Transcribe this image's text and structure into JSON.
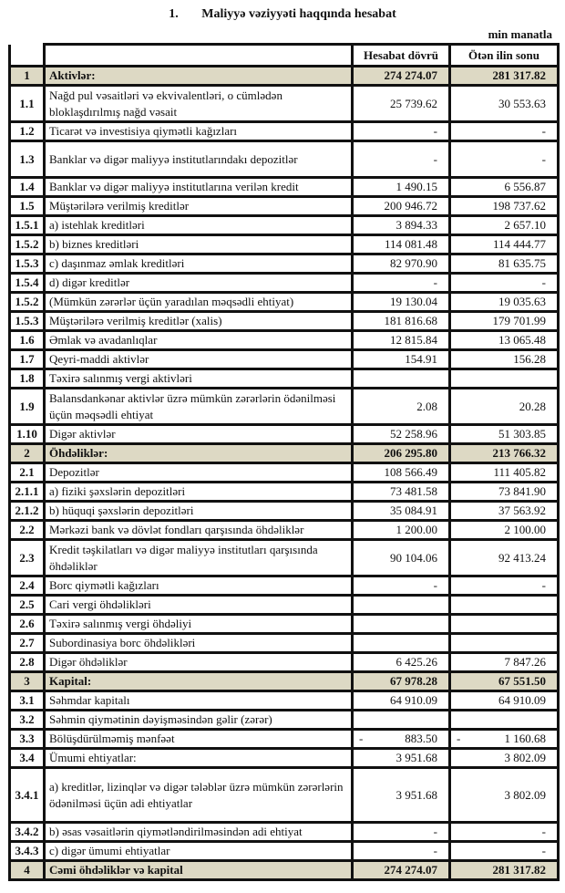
{
  "title": {
    "number": "1.",
    "text": "Maliyyə vəziyyəti haqqında hesabat"
  },
  "unit": "min manatla",
  "columns": {
    "num": "",
    "desc": "",
    "current": "Hesabat dövrü",
    "previous": "Ötən ilin sonu"
  },
  "rows": [
    {
      "num": "1",
      "desc": "Aktivlər:",
      "current": "274 274.07",
      "previous": "281 317.82",
      "section": true
    },
    {
      "num": "1.1",
      "desc": "Nağd pul vəsaitləri və  ekvivalentləri, o cümlədən bloklaşdırılmış nağd vəsait",
      "current": "25 739.62",
      "previous": "30 553.63",
      "lines": 2
    },
    {
      "num": "1.2",
      "desc": "Ticarət və investisiya qiymətli kağızları",
      "current": "-",
      "previous": "-"
    },
    {
      "num": "1.3",
      "desc": "Banklar və digər maliyyə institutlarındakı depozitlər",
      "current": "-",
      "previous": "-",
      "lines": 2
    },
    {
      "num": "1.4",
      "desc": "Banklar və digər maliyyə institutlarına verilən kredit",
      "current": "1 490.15",
      "previous": "6 556.87"
    },
    {
      "num": "1.5",
      "desc": "Müştərilərə verilmiş kreditlər",
      "current": "200 946.72",
      "previous": "198 737.62"
    },
    {
      "num": "1.5.1",
      "desc": "a) istehlak kreditləri",
      "current": "3 894.33",
      "previous": "2 657.10"
    },
    {
      "num": "1.5.2",
      "desc": "b) biznes kreditləri",
      "current": "114 081.48",
      "previous": "114 444.77"
    },
    {
      "num": "1.5.3",
      "desc": "c) daşınmaz əmlak kreditləri",
      "current": "82 970.90",
      "previous": "81 635.75"
    },
    {
      "num": "1.5.4",
      "desc": "d) digər kreditlər",
      "current": "-",
      "previous": "-"
    },
    {
      "num": "1.5.2",
      "desc": "(Mümkün zərərlər üçün yaradılan məqsədli ehtiyat)",
      "current": "19 130.04",
      "previous": "19 035.63"
    },
    {
      "num": "1.5.3",
      "desc": "Müştərilərə verilmiş kreditlər (xalis)",
      "current": "181 816.68",
      "previous": "179 701.99"
    },
    {
      "num": "1.6",
      "desc": "Əmlak və avadanlıqlar",
      "current": "12 815.84",
      "previous": "13 065.48"
    },
    {
      "num": "1.7",
      "desc": "Qeyri-maddi aktivlər",
      "current": "154.91",
      "previous": "156.28"
    },
    {
      "num": "1.8",
      "desc": "Təxirə salınmış vergi aktivləri",
      "current": "",
      "previous": ""
    },
    {
      "num": "1.9",
      "desc": "Balansdankənar aktivlər üzrə mümkün zərərlərin ödənilməsi üçün məqsədli ehtiyat",
      "current": "2.08",
      "previous": "20.28",
      "lines": 2
    },
    {
      "num": "1.10",
      "desc": "Digər aktivlər",
      "current": "52 258.96",
      "previous": "51 303.85"
    },
    {
      "num": "2",
      "desc": "Öhdəliklər:",
      "current": "206 295.80",
      "previous": "213 766.32",
      "section": true
    },
    {
      "num": "2.1",
      "desc": "Depozitlər",
      "current": "108 566.49",
      "previous": "111 405.82"
    },
    {
      "num": "2.1.1",
      "desc": "a) fiziki şəxslərin depozitləri",
      "current": "73 481.58",
      "previous": "73 841.90"
    },
    {
      "num": "2.1.2",
      "desc": "b) hüquqi şəxslərin depozitləri",
      "current": "35 084.91",
      "previous": "37 563.92"
    },
    {
      "num": "2.2",
      "desc": "Mərkəzi bank və dövlət fondları qarşısında öhdəliklər",
      "current": "1 200.00",
      "previous": "2 100.00"
    },
    {
      "num": "2.3",
      "desc": "Kredit təşkilatları və digər maliyyə institutları qarşısında öhdəliklər",
      "current": "90 104.06",
      "previous": "92 413.24",
      "lines": 2
    },
    {
      "num": "2.4",
      "desc": "Borc qiymətli kağızları",
      "current": "-",
      "previous": "-"
    },
    {
      "num": "2.5",
      "desc": "Cari vergi öhdəlikləri",
      "current": "",
      "previous": ""
    },
    {
      "num": "2.6",
      "desc": "Təxirə salınmış vergi öhdəliyi",
      "current": "",
      "previous": ""
    },
    {
      "num": "2.7",
      "desc": "Subordinasiya borc öhdəlikləri",
      "current": "",
      "previous": ""
    },
    {
      "num": "2.8",
      "desc": "Digər öhdəliklər",
      "current": "6 425.26",
      "previous": "7 847.26"
    },
    {
      "num": "3",
      "desc": "Kapital:",
      "current": "67 978.28",
      "previous": "67 551.50",
      "section": true
    },
    {
      "num": "3.1",
      "desc": "Səhmdar kapitalı",
      "current": "64 910.09",
      "previous": "64 910.09"
    },
    {
      "num": "3.2",
      "desc": "Səhmin qiymətinin dəyişməsindən gəlir (zərər)",
      "current": "",
      "previous": ""
    },
    {
      "num": "3.3",
      "desc": "Bölüşdürülməmiş mənfəət",
      "current": "883.50",
      "previous": "1 160.68",
      "sign": "-"
    },
    {
      "num": "3.4",
      "desc": "Ümumi ehtiyatlar:",
      "current": "3 951.68",
      "previous": "3 802.09"
    },
    {
      "num": "3.4.1",
      "desc": "a) kreditlər, lizinqlər və digər tələblər üzrə mümkün zərərlərin ödənilməsi üçün adi ehtiyatlar",
      "current": "3 951.68",
      "previous": "3 802.09",
      "lines": 3
    },
    {
      "num": "3.4.2",
      "desc": "b) əsas vəsaitlərin qiymətləndirilməsindən adi ehtiyat",
      "current": "-",
      "previous": "-"
    },
    {
      "num": "3.4.3",
      "desc": "c) digər ümumi ehtiyatlar",
      "current": "-",
      "previous": "-"
    },
    {
      "num": "4",
      "desc": "Cəmi öhdəliklər və kapital",
      "current": "274 274.07",
      "previous": "281 317.82",
      "section": true
    }
  ],
  "colors": {
    "section_bg": "#ddd9c4",
    "border": "#111111"
  }
}
